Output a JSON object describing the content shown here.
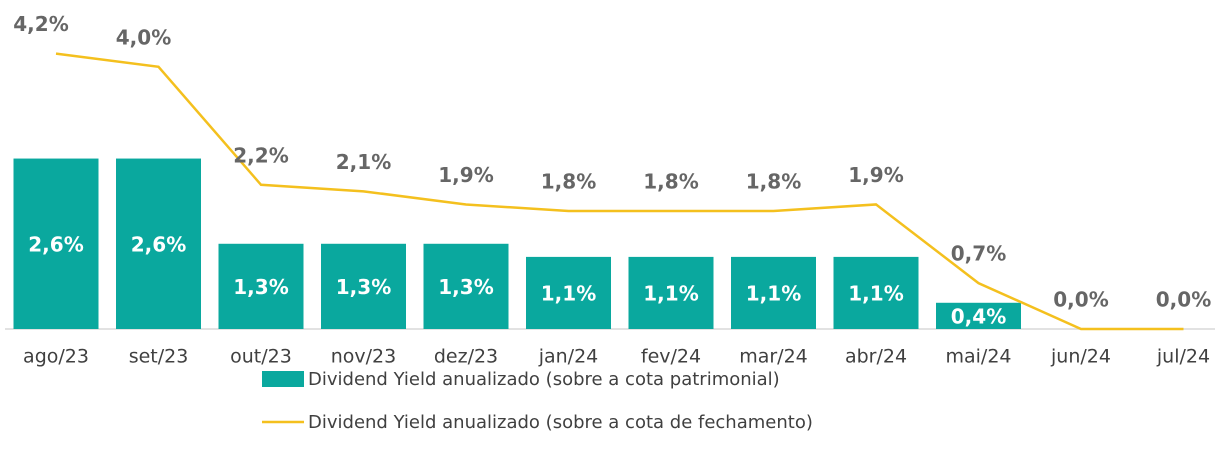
{
  "chart_data": {
    "type": "combo",
    "categories": [
      "ago/23",
      "set/23",
      "out/23",
      "nov/23",
      "dez/23",
      "jan/24",
      "fev/24",
      "mar/24",
      "abr/24",
      "mai/24",
      "jun/24",
      "jul/24"
    ],
    "series": [
      {
        "name": "Dividend Yield anualizado (sobre a cota patrimonial)",
        "type": "bar",
        "color": "#0aa89e",
        "values": [
          2.6,
          2.6,
          1.3,
          1.3,
          1.3,
          1.1,
          1.1,
          1.1,
          1.1,
          0.4,
          null,
          null
        ],
        "value_labels": [
          "2,6%",
          "2,6%",
          "1,3%",
          "1,3%",
          "1,3%",
          "1,1%",
          "1,1%",
          "1,1%",
          "1,1%",
          "0,4%",
          null,
          null
        ]
      },
      {
        "name": "Dividend Yield anualizado (sobre a cota de fechamento)",
        "type": "line",
        "color": "#f4c01e",
        "values": [
          4.2,
          4.0,
          2.2,
          2.1,
          1.9,
          1.8,
          1.8,
          1.8,
          1.9,
          0.7,
          0.0,
          0.0
        ],
        "value_labels": [
          "4,2%",
          "4,0%",
          "2,2%",
          "2,1%",
          "1,9%",
          "1,8%",
          "1,8%",
          "1,8%",
          "1,9%",
          "0,7%",
          "0,0%",
          "0,0%"
        ]
      }
    ],
    "ylim": [
      0,
      4.5
    ]
  }
}
